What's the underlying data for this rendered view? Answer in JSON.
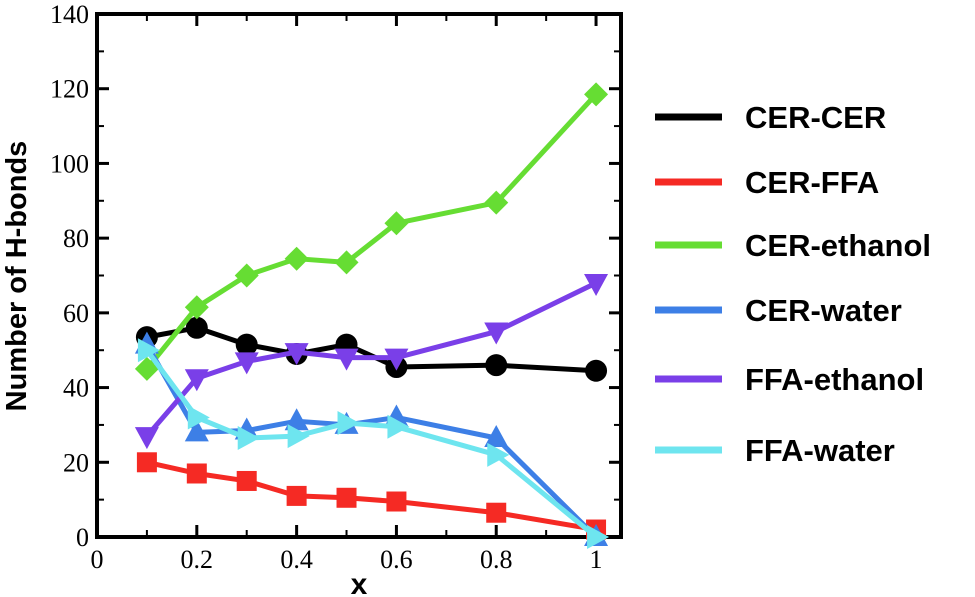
{
  "chart_data": {
    "type": "line",
    "xlabel": "x",
    "ylabel": "Number of H-bonds",
    "xlim": [
      0,
      1.05
    ],
    "ylim": [
      0,
      140
    ],
    "xticks": [
      0,
      0.2,
      0.4,
      0.6,
      0.8,
      1
    ],
    "xtick_labels": [
      "0",
      "0.2",
      "0.4",
      "0.6",
      "0.8",
      "1"
    ],
    "yticks": [
      0,
      20,
      40,
      60,
      80,
      100,
      120,
      140
    ],
    "ytick_labels": [
      "0",
      "20",
      "40",
      "60",
      "80",
      "100",
      "120",
      "140"
    ],
    "grid": false,
    "legend_position": "right",
    "x": [
      0.1,
      0.2,
      0.3,
      0.4,
      0.5,
      0.6,
      0.8,
      1.0
    ],
    "series": [
      {
        "name": "CER-CER",
        "color": "#000000",
        "marker": "circle",
        "values": [
          53.5,
          56,
          51.5,
          49,
          51.5,
          45.5,
          46,
          44.5
        ]
      },
      {
        "name": "CER-FFA",
        "color": "#f52a24",
        "marker": "square",
        "values": [
          20,
          17,
          15,
          11,
          10.5,
          9.5,
          6.5,
          2
        ]
      },
      {
        "name": "CER-ethanol",
        "color": "#66dd33",
        "marker": "diamond",
        "values": [
          45,
          61.5,
          70,
          74.5,
          73.5,
          84,
          89.5,
          118.5
        ]
      },
      {
        "name": "CER-water",
        "color": "#3d7fe6",
        "marker": "triangle-up",
        "values": [
          51.5,
          28,
          28.5,
          31,
          30,
          32,
          26.5,
          0
        ]
      },
      {
        "name": "FFA-ethanol",
        "color": "#7a3fe8",
        "marker": "triangle-down",
        "values": [
          27,
          42.5,
          47,
          49.5,
          48,
          48,
          55,
          68
        ]
      },
      {
        "name": "FFA-water",
        "color": "#6ee5ef",
        "marker": "triangle-right",
        "values": [
          50,
          32,
          26.5,
          27,
          30.5,
          29.5,
          22,
          0
        ]
      }
    ]
  }
}
